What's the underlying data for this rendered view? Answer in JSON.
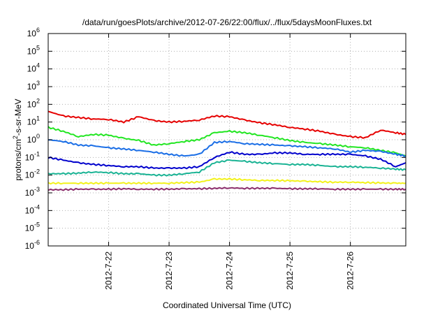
{
  "chart_data": {
    "type": "line",
    "title": "/data/run/goesPlots/archive/2012-07-26/22:00/flux/../flux/5daysMoonFluxes.txt",
    "xlabel": "Coordinated Universal Time (UTC)",
    "ylabel_base": "protons/cm",
    "ylabel_sup": "2",
    "ylabel_rest": "-s-sr-MeV",
    "y_scale": "log",
    "ylim_exp": [
      -6,
      6
    ],
    "y_ticks": [
      {
        "base": "10",
        "exp": "-6"
      },
      {
        "base": "10",
        "exp": "-5"
      },
      {
        "base": "10",
        "exp": "-4"
      },
      {
        "base": "10",
        "exp": "-3"
      },
      {
        "base": "10",
        "exp": "-2"
      },
      {
        "base": "10",
        "exp": "-1"
      },
      {
        "base": "10",
        "exp": "0"
      },
      {
        "base": "10",
        "exp": "1"
      },
      {
        "base": "10",
        "exp": "2"
      },
      {
        "base": "10",
        "exp": "3"
      },
      {
        "base": "10",
        "exp": "4"
      },
      {
        "base": "10",
        "exp": "5"
      },
      {
        "base": "10",
        "exp": "6"
      }
    ],
    "xlim": [
      "2012-07-21T00:00",
      "2012-07-26T22:00"
    ],
    "x_ticks": [
      "2012-7-22",
      "2012-7-23",
      "2012-7-24",
      "2012-7-25",
      "2012-7-26"
    ],
    "grid": true,
    "legend": "none",
    "series": [
      {
        "color": "#e60000",
        "times": [
          "07-21 00:00",
          "07-21 06:00",
          "07-21 12:00",
          "07-21 18:00",
          "07-22 00:00",
          "07-22 06:00",
          "07-22 12:00",
          "07-22 18:00",
          "07-23 00:00",
          "07-23 06:00",
          "07-23 12:00",
          "07-23 18:00",
          "07-24 00:00",
          "07-24 06:00",
          "07-24 12:00",
          "07-24 18:00",
          "07-25 00:00",
          "07-25 06:00",
          "07-25 12:00",
          "07-25 18:00",
          "07-26 00:00",
          "07-26 06:00",
          "07-26 12:00",
          "07-26 18:00",
          "07-26 22:00"
        ],
        "values": [
          40,
          22,
          18,
          15,
          14,
          10,
          20,
          12,
          10,
          11,
          13,
          22,
          20,
          13,
          9,
          7,
          5,
          4,
          3,
          2,
          1.5,
          1.3,
          3.5,
          2.5,
          2
        ]
      },
      {
        "color": "#22e622",
        "times": [
          "07-21 00:00",
          "07-21 06:00",
          "07-21 12:00",
          "07-21 18:00",
          "07-22 00:00",
          "07-22 06:00",
          "07-22 12:00",
          "07-22 18:00",
          "07-23 00:00",
          "07-23 06:00",
          "07-23 12:00",
          "07-23 18:00",
          "07-24 00:00",
          "07-24 06:00",
          "07-24 12:00",
          "07-24 18:00",
          "07-25 00:00",
          "07-25 06:00",
          "07-25 12:00",
          "07-25 18:00",
          "07-26 00:00",
          "07-26 06:00",
          "07-26 12:00",
          "07-26 18:00",
          "07-26 22:00"
        ],
        "values": [
          5,
          3,
          1.5,
          2,
          1.8,
          1.2,
          0.9,
          0.5,
          0.6,
          0.8,
          1.0,
          2.5,
          3,
          2.5,
          1.8,
          1.3,
          0.9,
          0.7,
          0.6,
          0.5,
          0.4,
          0.35,
          0.25,
          0.18,
          0.12
        ]
      },
      {
        "color": "#1a6ee6",
        "times": [
          "07-21 00:00",
          "07-21 06:00",
          "07-21 12:00",
          "07-21 18:00",
          "07-22 00:00",
          "07-22 06:00",
          "07-22 12:00",
          "07-22 18:00",
          "07-23 00:00",
          "07-23 06:00",
          "07-23 12:00",
          "07-23 18:00",
          "07-24 00:00",
          "07-24 06:00",
          "07-24 12:00",
          "07-24 18:00",
          "07-25 00:00",
          "07-25 06:00",
          "07-25 12:00",
          "07-25 18:00",
          "07-26 00:00",
          "07-26 06:00",
          "07-26 12:00",
          "07-26 18:00",
          "07-26 22:00"
        ],
        "values": [
          1.0,
          0.8,
          0.5,
          0.45,
          0.35,
          0.3,
          0.25,
          0.2,
          0.15,
          0.12,
          0.15,
          0.7,
          0.8,
          0.6,
          0.55,
          0.5,
          0.45,
          0.4,
          0.35,
          0.3,
          0.2,
          0.25,
          0.22,
          0.15,
          0.12
        ]
      },
      {
        "color": "#0000cc",
        "times": [
          "07-21 00:00",
          "07-21 06:00",
          "07-21 12:00",
          "07-21 18:00",
          "07-22 00:00",
          "07-22 06:00",
          "07-22 12:00",
          "07-22 18:00",
          "07-23 00:00",
          "07-23 06:00",
          "07-23 12:00",
          "07-23 18:00",
          "07-24 00:00",
          "07-24 06:00",
          "07-24 12:00",
          "07-24 18:00",
          "07-25 00:00",
          "07-25 06:00",
          "07-25 12:00",
          "07-25 18:00",
          "07-26 00:00",
          "07-26 06:00",
          "07-26 12:00",
          "07-26 18:00",
          "07-26 22:00"
        ],
        "values": [
          0.1,
          0.07,
          0.05,
          0.04,
          0.035,
          0.03,
          0.03,
          0.025,
          0.025,
          0.025,
          0.03,
          0.1,
          0.2,
          0.15,
          0.15,
          0.18,
          0.18,
          0.15,
          0.15,
          0.15,
          0.15,
          0.12,
          0.08,
          0.03,
          0.05
        ]
      },
      {
        "color": "#1ab394",
        "times": [
          "07-21 00:00",
          "07-21 06:00",
          "07-21 12:00",
          "07-21 18:00",
          "07-22 00:00",
          "07-22 06:00",
          "07-22 12:00",
          "07-22 18:00",
          "07-23 00:00",
          "07-23 06:00",
          "07-23 12:00",
          "07-23 18:00",
          "07-24 00:00",
          "07-24 06:00",
          "07-24 12:00",
          "07-24 18:00",
          "07-25 00:00",
          "07-25 06:00",
          "07-25 12:00",
          "07-25 18:00",
          "07-26 00:00",
          "07-26 06:00",
          "07-26 12:00",
          "07-26 18:00",
          "07-26 22:00"
        ],
        "values": [
          0.012,
          0.012,
          0.013,
          0.015,
          0.014,
          0.012,
          0.012,
          0.01,
          0.01,
          0.012,
          0.015,
          0.05,
          0.07,
          0.06,
          0.05,
          0.045,
          0.04,
          0.04,
          0.035,
          0.03,
          0.03,
          0.028,
          0.025,
          0.022,
          0.02
        ]
      },
      {
        "color": "#f2f21a",
        "times": [
          "07-21 00:00",
          "07-21 06:00",
          "07-21 12:00",
          "07-21 18:00",
          "07-22 00:00",
          "07-22 06:00",
          "07-22 12:00",
          "07-22 18:00",
          "07-23 00:00",
          "07-23 06:00",
          "07-23 12:00",
          "07-23 18:00",
          "07-24 00:00",
          "07-24 06:00",
          "07-24 12:00",
          "07-24 18:00",
          "07-25 00:00",
          "07-25 06:00",
          "07-25 12:00",
          "07-25 18:00",
          "07-26 00:00",
          "07-26 06:00",
          "07-26 12:00",
          "07-26 18:00",
          "07-26 22:00"
        ],
        "values": [
          0.0035,
          0.0035,
          0.0035,
          0.0035,
          0.0035,
          0.0035,
          0.0035,
          0.0035,
          0.0035,
          0.0038,
          0.004,
          0.006,
          0.006,
          0.0055,
          0.005,
          0.005,
          0.0048,
          0.0045,
          0.0042,
          0.004,
          0.004,
          0.0038,
          0.0036,
          0.0035,
          0.0035
        ]
      },
      {
        "color": "#8b2d6b",
        "times": [
          "07-21 00:00",
          "07-21 06:00",
          "07-21 12:00",
          "07-21 18:00",
          "07-22 00:00",
          "07-22 06:00",
          "07-22 12:00",
          "07-22 18:00",
          "07-23 00:00",
          "07-23 06:00",
          "07-23 12:00",
          "07-23 18:00",
          "07-24 00:00",
          "07-24 06:00",
          "07-24 12:00",
          "07-24 18:00",
          "07-25 00:00",
          "07-25 06:00",
          "07-25 12:00",
          "07-25 18:00",
          "07-26 00:00",
          "07-26 06:00",
          "07-26 12:00",
          "07-26 18:00",
          "07-26 22:00"
        ],
        "values": [
          0.0015,
          0.0015,
          0.0016,
          0.0016,
          0.0016,
          0.0017,
          0.0016,
          0.0016,
          0.0016,
          0.0017,
          0.0017,
          0.0018,
          0.0019,
          0.0018,
          0.0018,
          0.0018,
          0.0017,
          0.0017,
          0.0017,
          0.0016,
          0.0016,
          0.0016,
          0.0016,
          0.0016,
          0.0016
        ]
      }
    ]
  }
}
